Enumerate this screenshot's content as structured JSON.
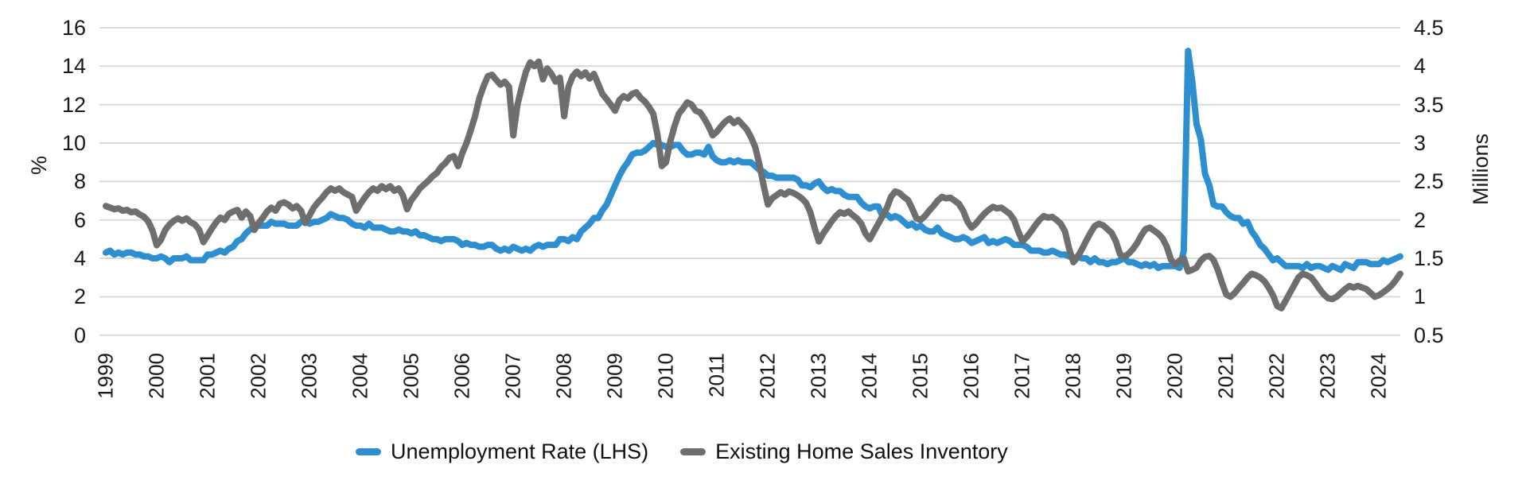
{
  "colors": {
    "unemployment_blue": "#2D8FD0",
    "inventory_gray": "#6E6E6E",
    "gridline": "#D9D9D9",
    "text": "#1A1A1A"
  },
  "chart_data": {
    "type": "line",
    "title": "",
    "x_axis": {
      "start": "1999-01",
      "end": "2024-06",
      "frequency": "monthly",
      "years": [
        "1999",
        "2000",
        "2001",
        "2002",
        "2003",
        "2004",
        "2005",
        "2006",
        "2007",
        "2008",
        "2009",
        "2010",
        "2011",
        "2012",
        "2013",
        "2014",
        "2015",
        "2016",
        "2017",
        "2018",
        "2019",
        "2020",
        "2021",
        "2022",
        "2023",
        "2024"
      ]
    },
    "left_axis": {
      "label": "%",
      "min": 0,
      "max": 16,
      "ticks": [
        16,
        14,
        12,
        10,
        8,
        6,
        4,
        2,
        0
      ]
    },
    "right_axis": {
      "label": "Millions",
      "min": 0.5,
      "max": 4.5,
      "ticks": [
        4.5,
        4,
        3.5,
        3,
        2.5,
        2,
        1.5,
        1,
        0.5
      ]
    },
    "grid": "horizontal-only",
    "legend_position": "bottom-center",
    "series": [
      {
        "name": "Unemployment Rate (LHS)",
        "axis": "left",
        "color": "#2D8FD0",
        "values": [
          4.3,
          4.4,
          4.2,
          4.3,
          4.2,
          4.3,
          4.3,
          4.2,
          4.2,
          4.1,
          4.1,
          4.0,
          4.0,
          4.1,
          4.0,
          3.8,
          4.0,
          4.0,
          4.0,
          4.1,
          3.9,
          3.9,
          3.9,
          3.9,
          4.2,
          4.2,
          4.3,
          4.4,
          4.3,
          4.5,
          4.6,
          4.9,
          5.0,
          5.3,
          5.5,
          5.7,
          5.7,
          5.7,
          5.7,
          5.9,
          5.8,
          5.8,
          5.8,
          5.7,
          5.7,
          5.7,
          5.9,
          6.0,
          5.8,
          5.9,
          5.9,
          6.0,
          6.1,
          6.3,
          6.2,
          6.1,
          6.1,
          6.0,
          5.8,
          5.7,
          5.7,
          5.6,
          5.8,
          5.6,
          5.6,
          5.6,
          5.5,
          5.4,
          5.4,
          5.5,
          5.4,
          5.4,
          5.3,
          5.4,
          5.2,
          5.2,
          5.1,
          5.0,
          5.0,
          4.9,
          5.0,
          5.0,
          5.0,
          4.9,
          4.7,
          4.8,
          4.7,
          4.7,
          4.6,
          4.6,
          4.7,
          4.7,
          4.5,
          4.4,
          4.5,
          4.4,
          4.6,
          4.5,
          4.4,
          4.5,
          4.4,
          4.6,
          4.7,
          4.6,
          4.7,
          4.7,
          4.7,
          5.0,
          5.0,
          4.9,
          5.1,
          5.0,
          5.4,
          5.6,
          5.8,
          6.1,
          6.1,
          6.5,
          6.8,
          7.3,
          7.8,
          8.3,
          8.7,
          9.0,
          9.4,
          9.5,
          9.5,
          9.6,
          9.8,
          10.0,
          9.9,
          9.9,
          9.8,
          9.8,
          9.9,
          9.9,
          9.6,
          9.4,
          9.4,
          9.5,
          9.5,
          9.4,
          9.8,
          9.3,
          9.1,
          9.0,
          9.0,
          9.1,
          9.0,
          9.1,
          9.0,
          9.0,
          9.0,
          8.8,
          8.6,
          8.5,
          8.3,
          8.3,
          8.2,
          8.2,
          8.2,
          8.2,
          8.2,
          8.1,
          7.8,
          7.8,
          7.7,
          7.9,
          8.0,
          7.7,
          7.5,
          7.6,
          7.5,
          7.5,
          7.3,
          7.2,
          7.2,
          7.2,
          6.9,
          6.7,
          6.6,
          6.7,
          6.7,
          6.2,
          6.3,
          6.1,
          6.2,
          6.1,
          5.9,
          5.7,
          5.8,
          5.6,
          5.7,
          5.5,
          5.4,
          5.4,
          5.6,
          5.3,
          5.2,
          5.1,
          5.0,
          5.0,
          5.1,
          5.0,
          4.8,
          4.9,
          5.0,
          5.1,
          4.8,
          4.9,
          4.8,
          4.9,
          5.0,
          4.9,
          4.7,
          4.7,
          4.7,
          4.6,
          4.4,
          4.4,
          4.4,
          4.3,
          4.3,
          4.4,
          4.3,
          4.2,
          4.2,
          4.1,
          4.0,
          4.1,
          4.0,
          4.0,
          3.8,
          4.0,
          3.8,
          3.8,
          3.7,
          3.8,
          3.8,
          3.9,
          4.0,
          3.8,
          3.8,
          3.7,
          3.6,
          3.7,
          3.6,
          3.7,
          3.5,
          3.6,
          3.6,
          3.6,
          3.6,
          3.5,
          4.4,
          14.8,
          13.2,
          11.0,
          10.2,
          8.4,
          7.8,
          6.8,
          6.7,
          6.7,
          6.4,
          6.2,
          6.1,
          6.1,
          5.8,
          5.9,
          5.4,
          5.1,
          4.7,
          4.5,
          4.2,
          3.9,
          4.0,
          3.8,
          3.6,
          3.6,
          3.6,
          3.6,
          3.5,
          3.7,
          3.5,
          3.6,
          3.6,
          3.5,
          3.4,
          3.6,
          3.5,
          3.4,
          3.7,
          3.6,
          3.5,
          3.8,
          3.8,
          3.8,
          3.7,
          3.7,
          3.7,
          3.9,
          3.8,
          3.9,
          4.0,
          4.1
        ]
      },
      {
        "name": "Existing Home Sales Inventory",
        "axis": "right",
        "color": "#6E6E6E",
        "values": [
          2.18,
          2.16,
          2.14,
          2.15,
          2.12,
          2.13,
          2.1,
          2.11,
          2.07,
          2.04,
          1.98,
          1.86,
          1.67,
          1.74,
          1.87,
          1.94,
          1.99,
          2.02,
          1.99,
          2.02,
          1.97,
          1.94,
          1.87,
          1.71,
          1.8,
          1.89,
          1.97,
          2.03,
          2.0,
          2.08,
          2.11,
          2.13,
          2.03,
          2.11,
          2.05,
          1.87,
          1.96,
          2.03,
          2.11,
          2.16,
          2.12,
          2.21,
          2.23,
          2.2,
          2.15,
          2.18,
          2.12,
          1.96,
          2.06,
          2.16,
          2.23,
          2.29,
          2.36,
          2.41,
          2.38,
          2.41,
          2.36,
          2.33,
          2.3,
          2.12,
          2.21,
          2.29,
          2.36,
          2.41,
          2.38,
          2.44,
          2.4,
          2.44,
          2.38,
          2.41,
          2.32,
          2.14,
          2.26,
          2.33,
          2.41,
          2.46,
          2.51,
          2.57,
          2.61,
          2.69,
          2.74,
          2.81,
          2.83,
          2.7,
          2.87,
          3.0,
          3.17,
          3.35,
          3.58,
          3.74,
          3.87,
          3.89,
          3.82,
          3.76,
          3.8,
          3.73,
          3.1,
          3.5,
          3.73,
          3.93,
          4.05,
          4.0,
          4.06,
          3.83,
          3.97,
          3.9,
          3.8,
          3.85,
          3.35,
          3.73,
          3.87,
          3.93,
          3.87,
          3.92,
          3.84,
          3.9,
          3.77,
          3.64,
          3.57,
          3.5,
          3.42,
          3.56,
          3.61,
          3.58,
          3.64,
          3.66,
          3.59,
          3.54,
          3.47,
          3.38,
          3.1,
          2.7,
          2.75,
          3.02,
          3.22,
          3.38,
          3.45,
          3.53,
          3.5,
          3.42,
          3.4,
          3.32,
          3.22,
          3.1,
          3.15,
          3.22,
          3.28,
          3.32,
          3.26,
          3.3,
          3.24,
          3.18,
          3.08,
          2.95,
          2.72,
          2.45,
          2.2,
          2.28,
          2.32,
          2.36,
          2.33,
          2.37,
          2.35,
          2.32,
          2.28,
          2.22,
          2.1,
          1.9,
          1.72,
          1.82,
          1.9,
          1.98,
          2.05,
          2.1,
          2.08,
          2.11,
          2.06,
          2.02,
          1.95,
          1.82,
          1.75,
          1.85,
          1.95,
          2.05,
          2.15,
          2.3,
          2.37,
          2.35,
          2.3,
          2.26,
          2.15,
          2.02,
          2.0,
          2.05,
          2.12,
          2.18,
          2.25,
          2.3,
          2.28,
          2.29,
          2.25,
          2.21,
          2.12,
          1.98,
          1.9,
          1.95,
          2.02,
          2.08,
          2.13,
          2.17,
          2.15,
          2.16,
          2.12,
          2.08,
          2.0,
          1.85,
          1.72,
          1.78,
          1.85,
          1.93,
          2.0,
          2.05,
          2.03,
          2.04,
          2.0,
          1.95,
          1.85,
          1.62,
          1.45,
          1.52,
          1.62,
          1.73,
          1.83,
          1.92,
          1.95,
          1.93,
          1.88,
          1.83,
          1.72,
          1.55,
          1.52,
          1.56,
          1.62,
          1.7,
          1.8,
          1.88,
          1.9,
          1.86,
          1.82,
          1.76,
          1.65,
          1.48,
          1.42,
          1.47,
          1.5,
          1.33,
          1.35,
          1.38,
          1.47,
          1.52,
          1.53,
          1.48,
          1.35,
          1.18,
          1.03,
          1.0,
          1.05,
          1.12,
          1.18,
          1.25,
          1.3,
          1.28,
          1.25,
          1.2,
          1.12,
          1.02,
          0.88,
          0.85,
          0.95,
          1.05,
          1.15,
          1.25,
          1.3,
          1.28,
          1.25,
          1.18,
          1.1,
          1.03,
          0.98,
          0.97,
          1.0,
          1.05,
          1.1,
          1.14,
          1.12,
          1.14,
          1.12,
          1.1,
          1.05,
          1.0,
          1.02,
          1.06,
          1.1,
          1.15,
          1.22,
          1.3
        ]
      }
    ]
  },
  "legend": {
    "items": [
      {
        "label": "Unemployment Rate (LHS)"
      },
      {
        "label": "Existing Home Sales Inventory"
      }
    ]
  }
}
